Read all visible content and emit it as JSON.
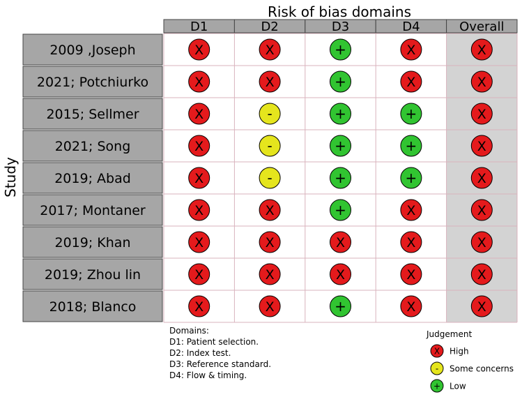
{
  "chart_data": {
    "type": "table",
    "title": "Risk of bias domains",
    "ylabel": "Study",
    "columns": [
      "D1",
      "D2",
      "D3",
      "D4",
      "Overall"
    ],
    "studies": [
      "2009 ,Joseph",
      "2021; Potchiurko",
      "2015; Sellmer",
      "2021; Song",
      "2019; Abad",
      "2017; Montaner",
      "2019; Khan",
      "2019; Zhou lin",
      "2018; Blanco"
    ],
    "judgements": [
      [
        "high",
        "high",
        "low",
        "high",
        "high"
      ],
      [
        "high",
        "high",
        "low",
        "high",
        "high"
      ],
      [
        "high",
        "some",
        "low",
        "low",
        "high"
      ],
      [
        "high",
        "some",
        "low",
        "low",
        "high"
      ],
      [
        "high",
        "some",
        "low",
        "low",
        "high"
      ],
      [
        "high",
        "high",
        "low",
        "high",
        "high"
      ],
      [
        "high",
        "high",
        "high",
        "high",
        "high"
      ],
      [
        "high",
        "high",
        "high",
        "high",
        "high"
      ],
      [
        "high",
        "high",
        "low",
        "high",
        "high"
      ]
    ],
    "symbols": {
      "high": "X",
      "some": "-",
      "low": "+"
    },
    "colors": {
      "high": "#e41a1c",
      "some": "#e5e51d",
      "low": "#31c431",
      "header_fill": "#a6a6a6",
      "study_fill": "#a6a6a6",
      "overall_fill": "#d3d3d3",
      "grid": "#d9b3bd"
    },
    "legend": {
      "title": "Judgement",
      "items": [
        {
          "key": "high",
          "label": "High"
        },
        {
          "key": "some",
          "label": "Some concerns"
        },
        {
          "key": "low",
          "label": "Low"
        }
      ]
    },
    "domains_legend": {
      "title": "Domains:",
      "items": [
        "D1: Patient selection.",
        "D2: Index test.",
        "D3: Reference standard.",
        "D4: Flow & timing."
      ]
    }
  }
}
